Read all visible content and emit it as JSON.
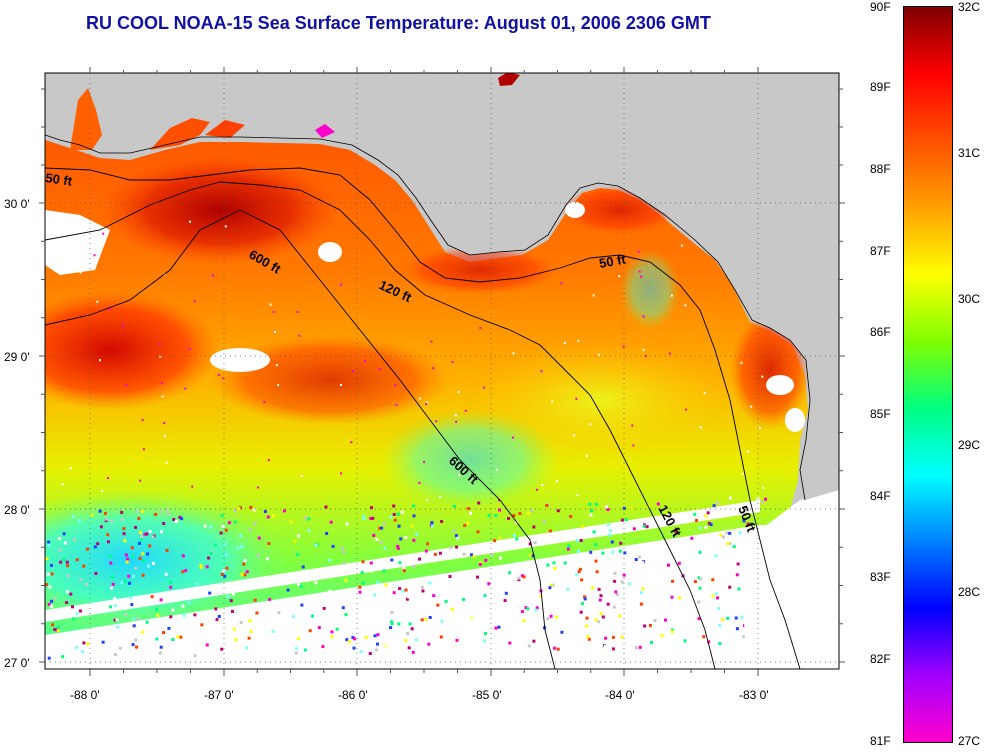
{
  "title": "RU COOL  NOAA-15  Sea Surface Temperature:  August 01, 2006 2306 GMT",
  "map": {
    "lat_labels": [
      "30 0'",
      "29 0'",
      "28 0'",
      "27 0'"
    ],
    "lon_labels": [
      "-88 0'",
      "-87 0'",
      "-86 0'",
      "-85 0'",
      "-84 0'",
      "-83 0'"
    ],
    "contour_labels": [
      "50 ft",
      "600 ft",
      "120 ft",
      "50 ft",
      "600 ft",
      "120 ft",
      "50 ft"
    ],
    "colors": {
      "land": "#c8c8c8",
      "frame": "#000000",
      "grid": "#555555"
    }
  },
  "colorbar": {
    "fahrenheit_labels": [
      "90F",
      "89F",
      "88F",
      "87F",
      "86F",
      "85F",
      "84F",
      "83F",
      "82F",
      "81F"
    ],
    "celsius_labels": [
      "32C",
      "31C",
      "30C",
      "29C",
      "28C",
      "27C"
    ],
    "stops": [
      "#ff00cc",
      "#a000ff",
      "#0000ff",
      "#0080ff",
      "#00ffff",
      "#00ff80",
      "#80ff00",
      "#ffff00",
      "#ffa000",
      "#ff5000",
      "#ff0000",
      "#800000"
    ]
  }
}
